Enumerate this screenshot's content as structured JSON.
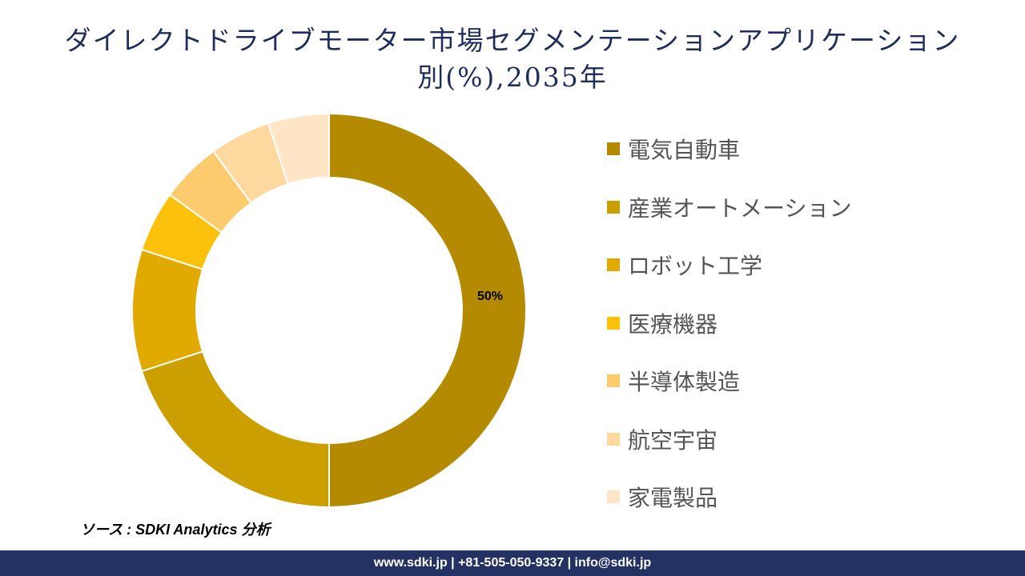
{
  "title_line1": "ダイレクトドライブモーター市場セグメンテーションアプリケーション",
  "title_line2": "別(%),2035年",
  "chart_data": {
    "type": "pie",
    "donut": true,
    "categories": [
      "電気自動車",
      "産業オートメーション",
      "ロボット工学",
      "医療機器",
      "半導体製造",
      "航空宇宙",
      "家電製品"
    ],
    "values": [
      50,
      20,
      10,
      5,
      5,
      5,
      5
    ],
    "colors": [
      "#B38A00",
      "#CC9F00",
      "#E0AA00",
      "#FCC10A",
      "#FCCB6E",
      "#FDD9A0",
      "#FDE5C6"
    ],
    "data_labels": [
      "50%",
      "",
      "",
      "",
      "",
      "",
      ""
    ],
    "legend_position": "right"
  },
  "source": "ソース : SDKI Analytics 分析",
  "footer": "www.sdki.jp | +81-505-050-9337 | info@sdki.jp"
}
